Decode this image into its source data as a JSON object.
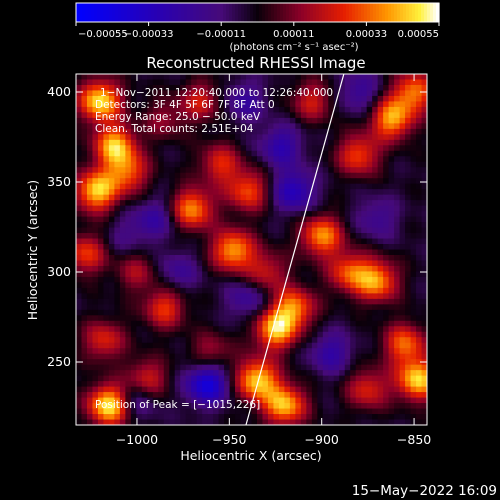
{
  "chart_data": {
    "type": "heatmap",
    "title": "Reconstructed RHESSI Image",
    "xlabel": "Heliocentric X (arcsec)",
    "ylabel": "Heliocentric Y (arcsec)",
    "xlim": [
      -1033,
      -843
    ],
    "ylim": [
      215,
      410
    ],
    "xticks": [
      -1000,
      -950,
      -900,
      -850
    ],
    "yticks": [
      250,
      300,
      350,
      400
    ],
    "xtick_labels": [
      "−1000",
      "−950",
      "−900",
      "−850"
    ],
    "ytick_labels": [
      "250",
      "300",
      "350",
      "400"
    ],
    "colorbar": {
      "ticks": [
        -0.00055,
        -0.00033,
        -0.00011,
        0.00011,
        0.00033,
        0.00055
      ],
      "tick_labels": [
        "−0.00055",
        "−0.00033",
        "−0.00011",
        "0.00011",
        "0.00033",
        "0.00055"
      ],
      "units_label": "(photons cm⁻² s⁻¹ asec⁻²)",
      "range": [
        -0.00055,
        0.00055
      ]
    },
    "limb_line": {
      "points": [
        [
          -941,
          215
        ],
        [
          -888,
          410
        ]
      ]
    },
    "annotations": [
      "1−Nov−2011 12:20:40.000 to 12:26:40.000",
      "Detectors: 3F 4F 5F 6F 7F 8F  Att 0",
      "Energy Range: 25.0 − 50.0 keV",
      "Clean.  Total counts: 2.51E+04",
      "Position of Peak = [−1015,226]"
    ],
    "blobs": [
      {
        "x": -1020,
        "y": 395,
        "v": 0.95
      },
      {
        "x": -1012,
        "y": 370,
        "v": 0.85
      },
      {
        "x": -1022,
        "y": 345,
        "v": 0.9
      },
      {
        "x": -1005,
        "y": 355,
        "v": 0.6
      },
      {
        "x": -1028,
        "y": 310,
        "v": 0.55
      },
      {
        "x": -1000,
        "y": 300,
        "v": 0.35
      },
      {
        "x": -1018,
        "y": 262,
        "v": 0.5
      },
      {
        "x": -1015,
        "y": 226,
        "v": 1.0
      },
      {
        "x": -995,
        "y": 240,
        "v": 0.55
      },
      {
        "x": -985,
        "y": 280,
        "v": 0.55
      },
      {
        "x": -970,
        "y": 335,
        "v": 0.75
      },
      {
        "x": -955,
        "y": 360,
        "v": 0.5
      },
      {
        "x": -940,
        "y": 345,
        "v": 0.6
      },
      {
        "x": -948,
        "y": 312,
        "v": 0.8
      },
      {
        "x": -930,
        "y": 300,
        "v": 0.45
      },
      {
        "x": -925,
        "y": 268,
        "v": 0.85
      },
      {
        "x": -915,
        "y": 280,
        "v": 0.7
      },
      {
        "x": -935,
        "y": 240,
        "v": 0.9
      },
      {
        "x": -920,
        "y": 226,
        "v": 0.85
      },
      {
        "x": -900,
        "y": 320,
        "v": 0.75
      },
      {
        "x": -885,
        "y": 300,
        "v": 0.6
      },
      {
        "x": -870,
        "y": 295,
        "v": 0.75
      },
      {
        "x": -855,
        "y": 260,
        "v": 0.65
      },
      {
        "x": -848,
        "y": 240,
        "v": 0.9
      },
      {
        "x": -880,
        "y": 365,
        "v": 0.6
      },
      {
        "x": -862,
        "y": 385,
        "v": 0.8
      },
      {
        "x": -850,
        "y": 400,
        "v": 0.7
      },
      {
        "x": -905,
        "y": 395,
        "v": 0.45
      },
      {
        "x": -965,
        "y": 395,
        "v": 0.45
      },
      {
        "x": -985,
        "y": 385,
        "v": 0.3
      },
      {
        "x": -960,
        "y": 255,
        "v": 0.35
      },
      {
        "x": -875,
        "y": 235,
        "v": 0.5
      },
      {
        "x": -990,
        "y": 330,
        "v": -0.35
      },
      {
        "x": -1000,
        "y": 230,
        "v": -0.4
      },
      {
        "x": -962,
        "y": 238,
        "v": -0.75
      },
      {
        "x": -978,
        "y": 300,
        "v": -0.3
      },
      {
        "x": -940,
        "y": 285,
        "v": -0.35
      },
      {
        "x": -915,
        "y": 345,
        "v": -0.55
      },
      {
        "x": -922,
        "y": 370,
        "v": -0.45
      },
      {
        "x": -895,
        "y": 255,
        "v": -0.4
      },
      {
        "x": -870,
        "y": 330,
        "v": -0.3
      },
      {
        "x": -880,
        "y": 400,
        "v": -0.35
      },
      {
        "x": -942,
        "y": 395,
        "v": -0.35
      },
      {
        "x": -1005,
        "y": 320,
        "v": -0.2
      }
    ]
  },
  "footer": {
    "timestamp": "15−May−2022 16:09"
  }
}
